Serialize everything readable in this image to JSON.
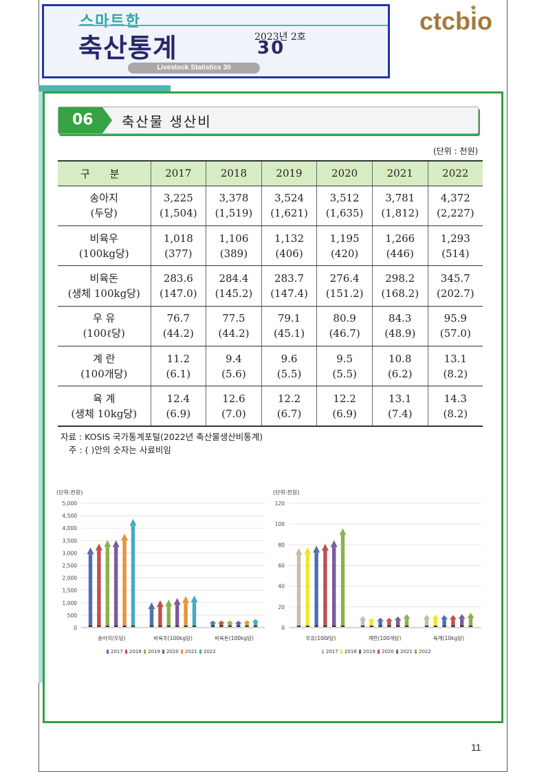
{
  "header": {
    "small_title": "스마트한",
    "big_title": "축산통계",
    "issue": "2023년 2호",
    "number": "30",
    "subtitle": "Livestock Statistics 30",
    "logo": "ctcbio"
  },
  "section": {
    "number": "06",
    "title": "축산물 생산비"
  },
  "unit": "(단위 : 천원)",
  "table": {
    "corner": "구 분",
    "years": [
      "2017",
      "2018",
      "2019",
      "2020",
      "2021",
      "2022"
    ],
    "rows": [
      {
        "label": [
          "송아지",
          "(두당)"
        ],
        "values": [
          [
            "3,225",
            "(1,504)"
          ],
          [
            "3,378",
            "(1,519)"
          ],
          [
            "3,524",
            "(1,621)"
          ],
          [
            "3,512",
            "(1,635)"
          ],
          [
            "3,781",
            "(1,812)"
          ],
          [
            "4,372",
            "(2,227)"
          ]
        ]
      },
      {
        "label": [
          "비육우",
          "(100kg당)"
        ],
        "values": [
          [
            "1,018",
            "(377)"
          ],
          [
            "1,106",
            "(389)"
          ],
          [
            "1,132",
            "(406)"
          ],
          [
            "1,195",
            "(420)"
          ],
          [
            "1,266",
            "(446)"
          ],
          [
            "1,293",
            "(514)"
          ]
        ]
      },
      {
        "label": [
          "비육돈",
          "(생체 100kg당)"
        ],
        "values": [
          [
            "283.6",
            "(147.0)"
          ],
          [
            "284.4",
            "(145.2)"
          ],
          [
            "283.7",
            "(147.4)"
          ],
          [
            "276.4",
            "(151.2)"
          ],
          [
            "298.2",
            "(168.2)"
          ],
          [
            "345.7",
            "(202.7)"
          ]
        ]
      },
      {
        "label": [
          "우 유",
          "(100ℓ당)"
        ],
        "values": [
          [
            "76.7",
            "(44.2)"
          ],
          [
            "77.5",
            "(44.2)"
          ],
          [
            "79.1",
            "(45.1)"
          ],
          [
            "80.9",
            "(46.7)"
          ],
          [
            "84.3",
            "(48.9)"
          ],
          [
            "95.9",
            "(57.0)"
          ]
        ]
      },
      {
        "label": [
          "계 란",
          "(100개당)"
        ],
        "values": [
          [
            "11.2",
            "(6.1)"
          ],
          [
            "9.4",
            "(5.6)"
          ],
          [
            "9.6",
            "(5.5)"
          ],
          [
            "9.5",
            "(5.5)"
          ],
          [
            "10.8",
            "(6.2)"
          ],
          [
            "13.1",
            "(8.2)"
          ]
        ]
      },
      {
        "label": [
          "육 계",
          "(생체 10kg당)"
        ],
        "values": [
          [
            "12.4",
            "(6.9)"
          ],
          [
            "12.6",
            "(7.0)"
          ],
          [
            "12.2",
            "(6.7)"
          ],
          [
            "12.2",
            "(6.9)"
          ],
          [
            "13.1",
            "(7.4)"
          ],
          [
            "14.3",
            "(8.2)"
          ]
        ]
      }
    ]
  },
  "notes": {
    "source": "자료 : KOSIS 국가통계포털(2022년 축산물생산비통계)",
    "remark": "주 : ( )안의 숫자는 사료비임"
  },
  "chart_data": [
    {
      "type": "bar",
      "unit_label": "(단위:천원)",
      "categories": [
        "송아지(두당)",
        "비육우(100kg당)",
        "비육돈(100kg당)"
      ],
      "series": [
        {
          "name": "2017",
          "values": [
            3225,
            1018,
            283.6
          ]
        },
        {
          "name": "2018",
          "values": [
            3378,
            1106,
            284.4
          ]
        },
        {
          "name": "2019",
          "values": [
            3524,
            1132,
            283.7
          ]
        },
        {
          "name": "2020",
          "values": [
            3512,
            1195,
            276.4
          ]
        },
        {
          "name": "2021",
          "values": [
            3781,
            1266,
            298.2
          ]
        },
        {
          "name": "2022",
          "values": [
            4372,
            1293,
            345.7
          ]
        }
      ],
      "yticks": [
        "0",
        "500",
        "1,000",
        "1,500",
        "2,000",
        "2,500",
        "3,000",
        "3,500",
        "4,000",
        "4,500",
        "5,000"
      ],
      "ylim": [
        0,
        5000
      ]
    },
    {
      "type": "bar",
      "unit_label": "(단위:천원)",
      "categories": [
        "우유(100ℓ당)",
        "계란(100개당)",
        "육계(10kg당)"
      ],
      "series": [
        {
          "name": "2017",
          "values": [
            76.7,
            11.2,
            12.4
          ]
        },
        {
          "name": "2018",
          "values": [
            77.5,
            9.4,
            12.6
          ]
        },
        {
          "name": "2019",
          "values": [
            79.1,
            9.6,
            12.2
          ]
        },
        {
          "name": "2020",
          "values": [
            80.9,
            9.5,
            12.2
          ]
        },
        {
          "name": "2021",
          "values": [
            84.3,
            10.8,
            13.1
          ]
        },
        {
          "name": "2022",
          "values": [
            95.9,
            13.1,
            14.3
          ]
        }
      ],
      "yticks": [
        "0",
        "20",
        "40",
        "60",
        "80",
        "100",
        "120"
      ],
      "ylim": [
        0,
        120
      ]
    }
  ],
  "colors": {
    "chart1": [
      "#4f6fae",
      "#c0504d",
      "#8db04f",
      "#7a5c9a",
      "#e8943a",
      "#48a8c6"
    ],
    "chart2": [
      "#c8bcaa",
      "#f0e52a",
      "#4f6fae",
      "#c0504d",
      "#7a5c9a",
      "#8db04f"
    ]
  },
  "page_number": "11"
}
